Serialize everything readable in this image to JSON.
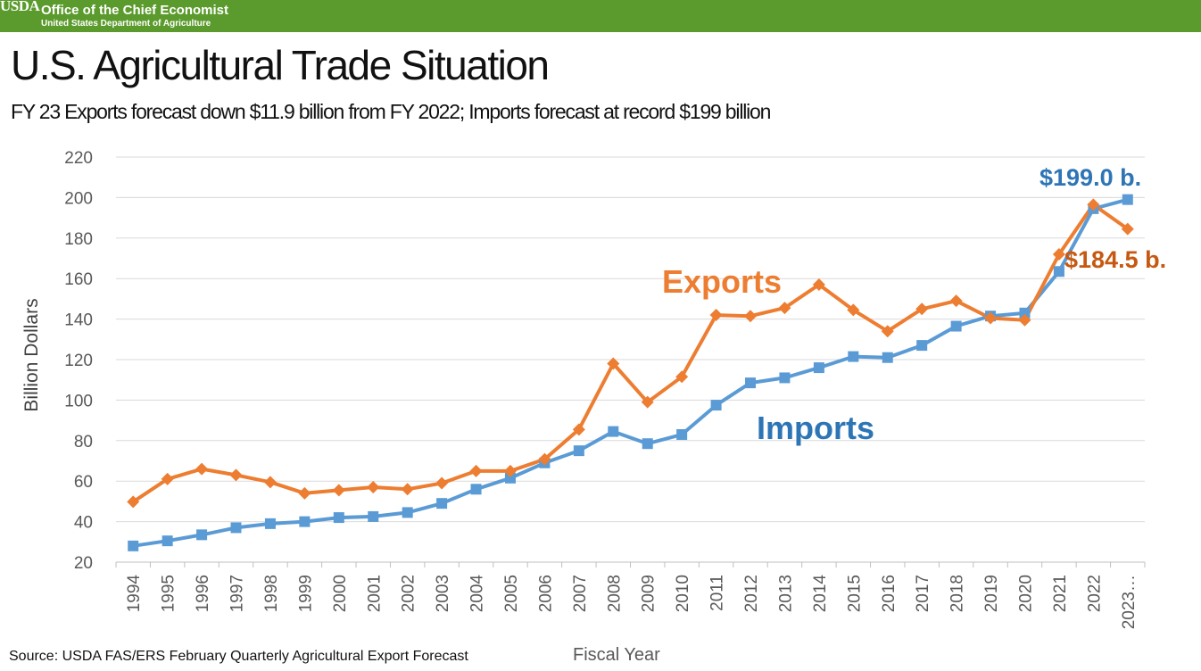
{
  "header": {
    "logo": "USDA",
    "org": "Office of the Chief Economist",
    "dept": "United States Department of Agriculture"
  },
  "title": "U.S. Agricultural Trade Situation",
  "subtitle": "FY 23 Exports forecast down $11.9 billion from FY 2022; Imports forecast at record $199 billion",
  "source": "Source: USDA FAS/ERS February Quarterly Agricultural Export Forecast",
  "colors": {
    "exports": "#ed7d31",
    "imports": "#5b9bd5",
    "banner": "#5b9a2c",
    "exports_label": "#c65911",
    "imports_label": "#2e75b6"
  },
  "chart_data": {
    "type": "line",
    "xlabel": "Fiscal Year",
    "ylabel": "Billion Dollars",
    "ylim": [
      20,
      220
    ],
    "yticks": [
      20,
      40,
      60,
      80,
      100,
      120,
      140,
      160,
      180,
      200,
      220
    ],
    "grid": true,
    "categories": [
      "1994",
      "1995",
      "1996",
      "1997",
      "1998",
      "1999",
      "2000",
      "2001",
      "2002",
      "2003",
      "2004",
      "2005",
      "2006",
      "2007",
      "2008",
      "2009",
      "2010",
      "2011",
      "2012",
      "2013",
      "2014",
      "2015",
      "2016",
      "2017",
      "2018",
      "2019",
      "2020",
      "2021",
      "2022",
      "2023…"
    ],
    "series": [
      {
        "name": "Exports",
        "marker": "diamond",
        "values": [
          49.8,
          61.0,
          66.0,
          63.0,
          59.5,
          54.0,
          55.5,
          57.0,
          56.0,
          59.0,
          65.0,
          65.0,
          70.8,
          85.5,
          118.0,
          99.0,
          111.5,
          142.0,
          141.5,
          145.5,
          157.0,
          144.5,
          134.0,
          145.0,
          149.0,
          140.5,
          139.5,
          172.0,
          196.5,
          184.5
        ]
      },
      {
        "name": "Imports",
        "marker": "square",
        "values": [
          28.0,
          30.5,
          33.5,
          37.0,
          39.0,
          40.0,
          42.0,
          42.5,
          44.5,
          49.0,
          56.0,
          61.5,
          69.0,
          75.0,
          84.5,
          78.5,
          83.0,
          97.5,
          108.5,
          111.0,
          116.0,
          121.5,
          121.0,
          127.0,
          136.5,
          141.5,
          143.0,
          163.5,
          194.5,
          199.0
        ]
      }
    ],
    "annotations": [
      {
        "text": "Exports",
        "series": "Exports"
      },
      {
        "text": "Imports",
        "series": "Imports"
      },
      {
        "text": "$199.0 b.",
        "series": "Imports"
      },
      {
        "text": "$184.5 b.",
        "series": "Exports"
      }
    ]
  }
}
